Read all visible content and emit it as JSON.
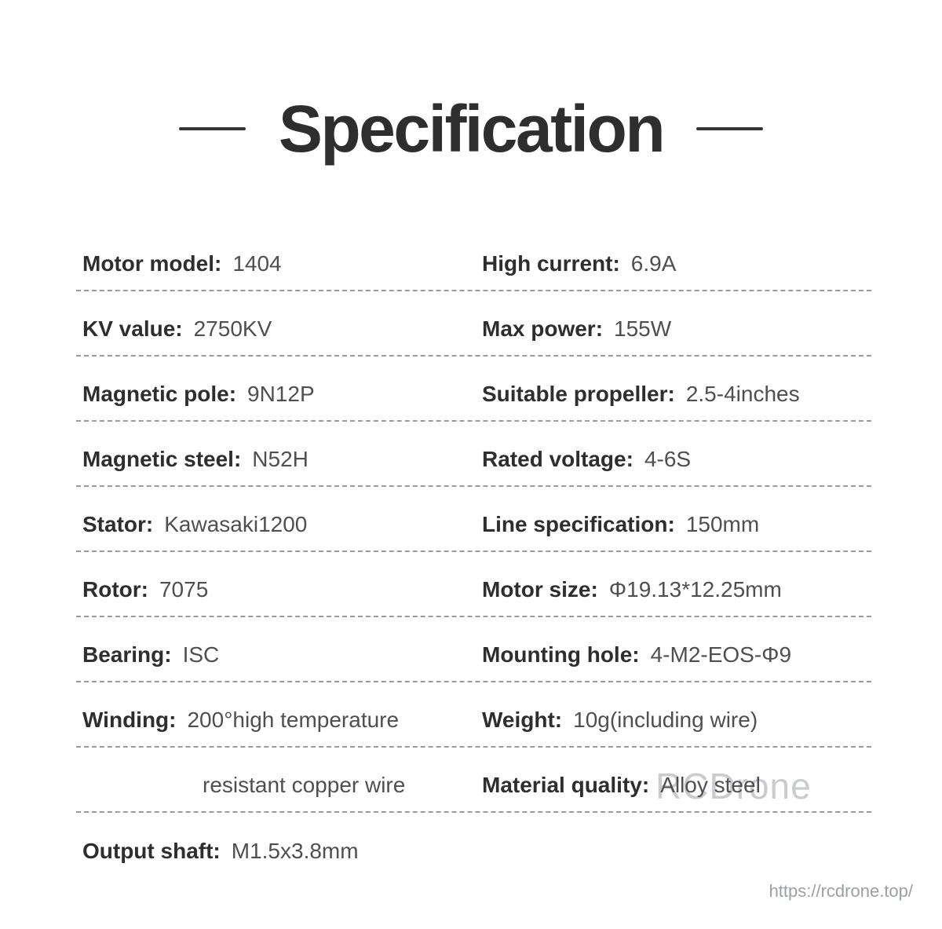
{
  "title": {
    "text": "Specification"
  },
  "rows": [
    {
      "l_label": "Motor model:",
      "l_value": "1404",
      "r_label": "High current:",
      "r_value": "6.9A"
    },
    {
      "l_label": "KV value:",
      "l_value": "2750KV",
      "r_label": "Max power:",
      "r_value": "155W"
    },
    {
      "l_label": "Magnetic pole:",
      "l_value": "9N12P",
      "r_label": "Suitable propeller:",
      "r_value": "2.5-4inches"
    },
    {
      "l_label": "Magnetic steel:",
      "l_value": "N52H",
      "r_label": "Rated voltage:",
      "r_value": "4-6S"
    },
    {
      "l_label": "Stator:",
      "l_value": "Kawasaki1200",
      "r_label": "Line specification:",
      "r_value": "150mm"
    },
    {
      "l_label": "Rotor:",
      "l_value": "7075",
      "r_label": "Motor size:",
      "r_value": "Φ19.13*12.25mm"
    },
    {
      "l_label": "Bearing:",
      "l_value": "ISC",
      "r_label": "Mounting hole:",
      "r_value": "4-M2-EOS-Φ9"
    },
    {
      "l_label": "Winding:",
      "l_value": "200°high temperature",
      "r_label": "Weight:",
      "r_value": "10g(including wire)"
    },
    {
      "l_label": "",
      "l_value": "resistant copper wire",
      "r_label": "Material quality:",
      "r_value": "Alloy steel"
    },
    {
      "l_label": "Output shaft:",
      "l_value": "M1.5x3.8mm",
      "r_label": "",
      "r_value": ""
    }
  ],
  "watermark": "RCDrone",
  "footer": {
    "url": "https://rcdrone.top/"
  },
  "colors": {
    "title_text": "#2e2e2e",
    "label_text": "#2e2e2e",
    "value_text": "#4f4f4f",
    "dashed_line": "#9b9b9b",
    "watermark": "#c9cbce",
    "footer_url": "#9aa0a3",
    "background": "#ffffff"
  }
}
